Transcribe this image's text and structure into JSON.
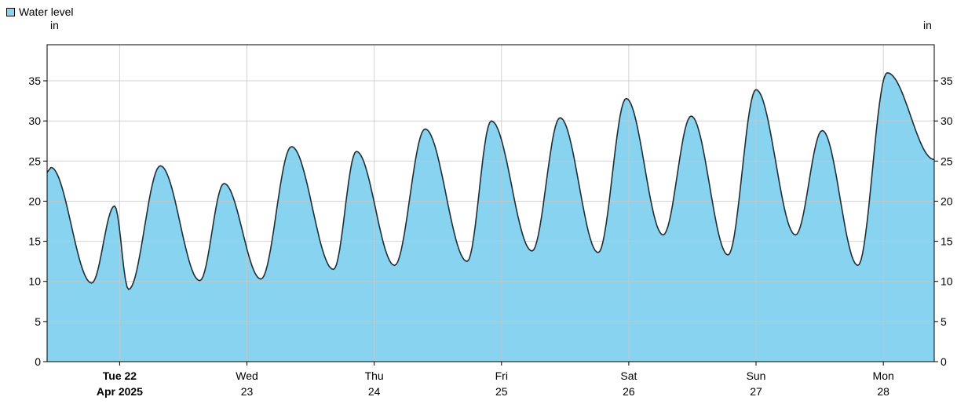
{
  "chart_data": {
    "type": "area",
    "legend": {
      "label": "Water level",
      "placement": "top-left"
    },
    "y_unit_left": "in",
    "y_unit_right": "in",
    "ylim": [
      0,
      39.5
    ],
    "y_ticks": [
      0,
      5,
      10,
      15,
      20,
      25,
      30,
      35
    ],
    "grid": true,
    "colors": {
      "fill": "#87d3f0",
      "line": "#1f2f35",
      "grid": "#c8c8c8"
    },
    "x_range_days": [
      21.43,
      28.4
    ],
    "x_ticks": [
      {
        "day": 22,
        "label": "Tue 22",
        "sublabel": "Apr 2025",
        "bold": true
      },
      {
        "day": 23,
        "label": "Wed",
        "sublabel": "23",
        "bold": false
      },
      {
        "day": 24,
        "label": "Thu",
        "sublabel": "24",
        "bold": false
      },
      {
        "day": 25,
        "label": "Fri",
        "sublabel": "25",
        "bold": false
      },
      {
        "day": 26,
        "label": "Sat",
        "sublabel": "26",
        "bold": false
      },
      {
        "day": 27,
        "label": "Sun",
        "sublabel": "27",
        "bold": false
      },
      {
        "day": 28,
        "label": "Mon",
        "sublabel": "28",
        "bold": false
      }
    ],
    "series": [
      {
        "name": "Water level",
        "points": [
          [
            21.43,
            23.6
          ],
          [
            21.46,
            24.2
          ],
          [
            21.78,
            9.8
          ],
          [
            21.96,
            19.4
          ],
          [
            22.07,
            9.0
          ],
          [
            22.32,
            24.4
          ],
          [
            22.63,
            10.1
          ],
          [
            22.82,
            22.2
          ],
          [
            23.11,
            10.3
          ],
          [
            23.35,
            26.8
          ],
          [
            23.68,
            11.5
          ],
          [
            23.86,
            26.2
          ],
          [
            24.16,
            12.0
          ],
          [
            24.4,
            29.0
          ],
          [
            24.73,
            12.5
          ],
          [
            24.92,
            30.0
          ],
          [
            25.24,
            13.8
          ],
          [
            25.46,
            30.4
          ],
          [
            25.76,
            13.6
          ],
          [
            25.98,
            32.8
          ],
          [
            26.27,
            15.8
          ],
          [
            26.49,
            30.6
          ],
          [
            26.78,
            13.3
          ],
          [
            27.0,
            33.9
          ],
          [
            27.31,
            15.8
          ],
          [
            27.52,
            28.8
          ],
          [
            27.8,
            12.0
          ],
          [
            28.03,
            36.0
          ],
          [
            28.4,
            25.2
          ]
        ]
      }
    ]
  }
}
